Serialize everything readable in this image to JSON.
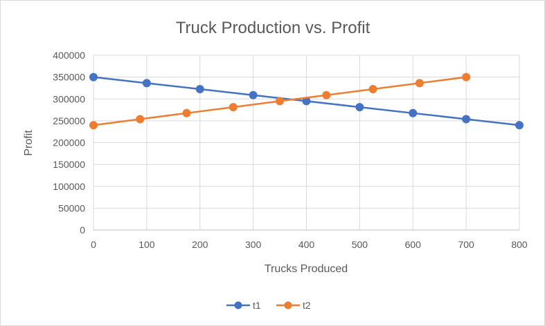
{
  "chart_data": {
    "type": "line",
    "title": "Truck Production vs. Profit",
    "xlabel": "Trucks Produced",
    "ylabel": "Profit",
    "xlim": [
      0,
      800
    ],
    "ylim": [
      0,
      400000
    ],
    "x_ticks": [
      "0",
      "100",
      "200",
      "300",
      "400",
      "500",
      "600",
      "700",
      "800"
    ],
    "y_ticks": [
      "0",
      "50000",
      "100000",
      "150000",
      "200000",
      "250000",
      "300000",
      "350000",
      "400000"
    ],
    "grid": true,
    "legend_position": "bottom",
    "series": [
      {
        "name": "t1",
        "color": "#4472C4",
        "points": [
          {
            "x": 0,
            "y": 350000
          },
          {
            "x": 100,
            "y": 336250
          },
          {
            "x": 200,
            "y": 322500
          },
          {
            "x": 300,
            "y": 308750
          },
          {
            "x": 400,
            "y": 295000
          },
          {
            "x": 500,
            "y": 281250
          },
          {
            "x": 600,
            "y": 267500
          },
          {
            "x": 700,
            "y": 253750
          },
          {
            "x": 800,
            "y": 240000
          }
        ]
      },
      {
        "name": "t2",
        "color": "#ED7D31",
        "points": [
          {
            "x": 0,
            "y": 240000
          },
          {
            "x": 87.5,
            "y": 253750
          },
          {
            "x": 175,
            "y": 267500
          },
          {
            "x": 262.5,
            "y": 281250
          },
          {
            "x": 350,
            "y": 295000
          },
          {
            "x": 437.5,
            "y": 308750
          },
          {
            "x": 525,
            "y": 322500
          },
          {
            "x": 612.5,
            "y": 336250
          },
          {
            "x": 700,
            "y": 350000
          }
        ]
      }
    ]
  }
}
